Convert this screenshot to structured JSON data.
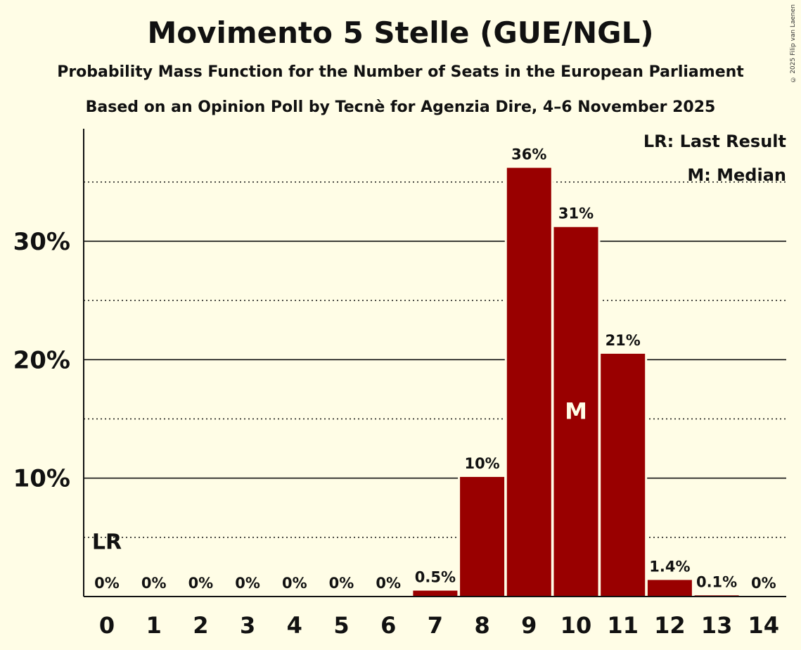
{
  "chart_data": {
    "type": "bar",
    "title": "Movimento 5 Stelle (GUE/NGL)",
    "subtitle": "Probability Mass Function for the Number of Seats in the European Parliament",
    "subtitle2": "Based on an Opinion Poll by Tecnè for Agenzia Dire, 4–6 November 2025",
    "copyright": "© 2025 Filip van Laenen",
    "categories": [
      "0",
      "1",
      "2",
      "3",
      "4",
      "5",
      "6",
      "7",
      "8",
      "9",
      "10",
      "11",
      "12",
      "13",
      "14"
    ],
    "values": [
      0,
      0,
      0,
      0,
      0,
      0,
      0,
      0.5,
      10.1,
      36.2,
      31.2,
      20.5,
      1.4,
      0.1,
      0
    ],
    "value_labels": [
      "0%",
      "0%",
      "0%",
      "0%",
      "0%",
      "0%",
      "0%",
      "0.5%",
      "10%",
      "36%",
      "31%",
      "21%",
      "1.4%",
      "0.1%",
      "0%"
    ],
    "ylim": [
      0,
      39.5
    ],
    "yticks": [
      10,
      20,
      30
    ],
    "ytick_labels": [
      "10%",
      "20%",
      "30%"
    ],
    "minor_gridlines": [
      5,
      15,
      25,
      35
    ],
    "last_result_seat": "0",
    "last_result_label": "LR",
    "median_seat": "10",
    "median_label": "M",
    "legend": [
      "LR: Last Result",
      "M: Median"
    ],
    "legend_position": "top-right",
    "bar_color": "#990000"
  }
}
